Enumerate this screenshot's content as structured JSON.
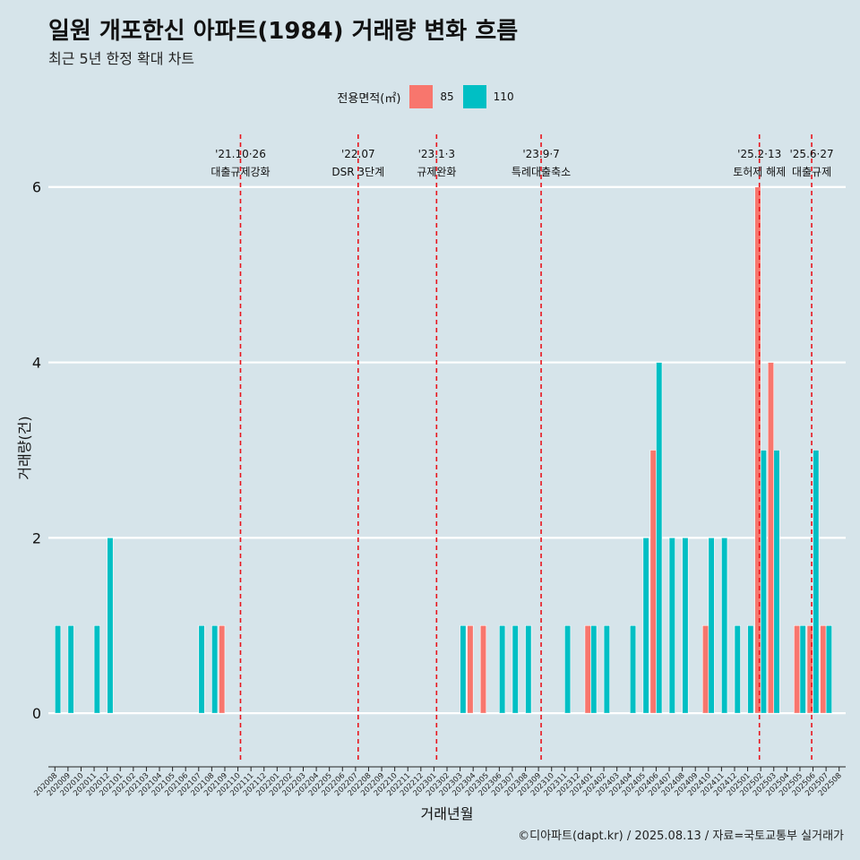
{
  "title": "일원 개포한신 아파트(1984) 거래량 변화 흐름",
  "subtitle": "최근 5년 한정 확대 차트",
  "caption": "©디아파트(dapt.kr) / 2025.08.13 / 자료=국토교통부 실거래가",
  "colors": {
    "85": "#f8766d",
    "110": "#00bfc4",
    "vline": "#e8141c",
    "grid": "#ffffff",
    "background": "#d6e4ea"
  },
  "chart_data": {
    "type": "bar",
    "xlabel": "거래년월",
    "ylabel": "거래량(건)",
    "ylim": [
      -0.55,
      6.6
    ],
    "yticks": [
      0,
      2,
      4,
      6
    ],
    "legend": {
      "title": "전용면적(㎡)",
      "placement": "top-center"
    },
    "categories": [
      "202008",
      "202009",
      "202010",
      "202011",
      "202012",
      "202101",
      "202102",
      "202103",
      "202104",
      "202105",
      "202106",
      "202107",
      "202108",
      "202109",
      "202110",
      "202111",
      "202112",
      "202201",
      "202202",
      "202203",
      "202204",
      "202205",
      "202206",
      "202207",
      "202208",
      "202209",
      "202210",
      "202211",
      "202212",
      "202301",
      "202302",
      "202303",
      "202304",
      "202305",
      "202306",
      "202307",
      "202308",
      "202309",
      "202310",
      "202311",
      "202312",
      "202401",
      "202402",
      "202403",
      "202404",
      "202405",
      "202406",
      "202407",
      "202408",
      "202409",
      "202410",
      "202411",
      "202412",
      "202501",
      "202502",
      "202503",
      "202504",
      "202505",
      "202506",
      "202507",
      "202508"
    ],
    "series": [
      {
        "name": "85",
        "values": [
          0,
          0,
          0,
          0,
          0,
          0,
          0,
          0,
          0,
          0,
          0,
          0,
          0,
          1,
          0,
          0,
          0,
          0,
          0,
          0,
          0,
          0,
          0,
          0,
          0,
          0,
          0,
          0,
          0,
          0,
          0,
          0,
          1,
          1,
          0,
          0,
          0,
          0,
          0,
          0,
          0,
          1,
          0,
          0,
          0,
          0,
          3,
          0,
          0,
          0,
          1,
          0,
          0,
          0,
          6,
          4,
          0,
          1,
          1,
          1,
          0
        ]
      },
      {
        "name": "110",
        "values": [
          1,
          1,
          0,
          1,
          2,
          0,
          0,
          0,
          0,
          0,
          0,
          1,
          1,
          0,
          0,
          0,
          0,
          0,
          0,
          0,
          0,
          0,
          0,
          0,
          0,
          0,
          0,
          0,
          0,
          0,
          0,
          1,
          0,
          0,
          1,
          1,
          1,
          0,
          0,
          1,
          0,
          1,
          1,
          0,
          1,
          2,
          4,
          2,
          2,
          0,
          2,
          2,
          1,
          1,
          3,
          3,
          0,
          1,
          3,
          1,
          0
        ]
      }
    ],
    "annotations": [
      {
        "index": 14.2,
        "date": "'21.10·26",
        "label": "대출규제강화"
      },
      {
        "index": 23.2,
        "date": "'22.07",
        "label": "DSR 3단계"
      },
      {
        "index": 29.2,
        "date": "'23.1·3",
        "label": "규제완화"
      },
      {
        "index": 37.2,
        "date": "'23.9·7",
        "label": "특례대출축소"
      },
      {
        "index": 53.9,
        "date": "'25.2·13",
        "label": "토허제 해제"
      },
      {
        "index": 57.9,
        "date": "'25.6·27",
        "label": "대출규제"
      }
    ]
  }
}
